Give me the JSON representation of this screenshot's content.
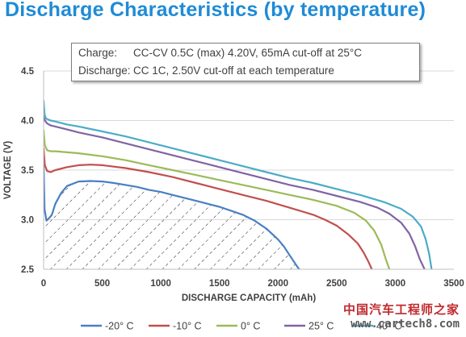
{
  "chart_data": {
    "type": "line",
    "title": "Discharge Characteristics (by temperature)",
    "xlabel": "DISCHARGE CAPACITY (mAh)",
    "ylabel": "VOLTAGE (V)",
    "xlim": [
      0,
      3500
    ],
    "ylim": [
      2.5,
      4.5
    ],
    "x_ticks": [
      0,
      500,
      1000,
      1500,
      2000,
      2500,
      3000,
      3500
    ],
    "y_ticks": [
      2.5,
      3.0,
      3.5,
      4.0,
      4.5
    ],
    "x_tick_labels": [
      "0",
      "500",
      "1000",
      "1500",
      "2000",
      "2500",
      "3000",
      "3500"
    ],
    "y_tick_labels": [
      "2.5",
      "3.0",
      "3.5",
      "4.0",
      "4.5"
    ],
    "grid": "horizontal",
    "legend_position": "bottom",
    "notes": [
      {
        "label": "Charge:",
        "text": "CC-CV 0.5C (max) 4.20V, 65mA cut-off at 25°C"
      },
      {
        "label": "Discharge:",
        "text": "CC 1C, 2.50V cut-off at each temperature"
      }
    ],
    "hatched_region_series": 0,
    "series": [
      {
        "name": "-20° C",
        "color": "#4a7fc1",
        "x": [
          0,
          8,
          25,
          50,
          70,
          100,
          150,
          200,
          300,
          400,
          500,
          600,
          700,
          800,
          900,
          1000,
          1100,
          1200,
          1300,
          1400,
          1500,
          1600,
          1700,
          1800,
          1900,
          2000,
          2050,
          2100,
          2150,
          2180
        ],
        "y": [
          3.55,
          3.1,
          2.99,
          3.02,
          3.05,
          3.16,
          3.27,
          3.34,
          3.385,
          3.39,
          3.385,
          3.37,
          3.35,
          3.33,
          3.3,
          3.28,
          3.25,
          3.22,
          3.19,
          3.16,
          3.13,
          3.09,
          3.05,
          2.99,
          2.91,
          2.8,
          2.73,
          2.64,
          2.55,
          2.5
        ]
      },
      {
        "name": "-10° C",
        "color": "#c0504d",
        "x": [
          0,
          10,
          30,
          60,
          100,
          200,
          300,
          400,
          500,
          700,
          900,
          1100,
          1300,
          1500,
          1700,
          1900,
          2100,
          2300,
          2400,
          2500,
          2600,
          2680,
          2730,
          2770,
          2800
        ],
        "y": [
          3.72,
          3.55,
          3.49,
          3.48,
          3.5,
          3.53,
          3.55,
          3.555,
          3.55,
          3.52,
          3.48,
          3.43,
          3.37,
          3.31,
          3.25,
          3.19,
          3.12,
          3.05,
          3.0,
          2.94,
          2.85,
          2.76,
          2.67,
          2.58,
          2.5
        ]
      },
      {
        "name": "0° C",
        "color": "#9bbb59",
        "x": [
          0,
          10,
          30,
          60,
          100,
          200,
          300,
          500,
          700,
          900,
          1100,
          1300,
          1500,
          1700,
          1900,
          2100,
          2300,
          2500,
          2650,
          2750,
          2820,
          2880,
          2920,
          2950
        ],
        "y": [
          3.9,
          3.75,
          3.7,
          3.69,
          3.69,
          3.68,
          3.67,
          3.64,
          3.6,
          3.55,
          3.5,
          3.45,
          3.4,
          3.35,
          3.3,
          3.25,
          3.2,
          3.14,
          3.07,
          2.99,
          2.89,
          2.75,
          2.6,
          2.5
        ]
      },
      {
        "name": "25° C",
        "color": "#8064a2",
        "x": [
          0,
          10,
          30,
          60,
          100,
          200,
          300,
          500,
          700,
          900,
          1100,
          1300,
          1500,
          1700,
          1900,
          2100,
          2300,
          2500,
          2700,
          2850,
          2950,
          3050,
          3120,
          3170,
          3210,
          3250
        ],
        "y": [
          4.05,
          4.0,
          3.97,
          3.95,
          3.94,
          3.91,
          3.88,
          3.83,
          3.77,
          3.71,
          3.65,
          3.59,
          3.53,
          3.47,
          3.41,
          3.35,
          3.3,
          3.24,
          3.18,
          3.12,
          3.06,
          2.97,
          2.86,
          2.73,
          2.6,
          2.5
        ]
      },
      {
        "name": "40° C",
        "color": "#4bacc6",
        "x": [
          0,
          8,
          20,
          40,
          60,
          100,
          200,
          300,
          500,
          700,
          900,
          1100,
          1300,
          1500,
          1700,
          1900,
          2100,
          2300,
          2500,
          2700,
          2900,
          3050,
          3150,
          3220,
          3260,
          3290,
          3310
        ],
        "y": [
          4.2,
          4.06,
          4.02,
          4.01,
          4.0,
          3.99,
          3.96,
          3.94,
          3.89,
          3.84,
          3.78,
          3.72,
          3.66,
          3.6,
          3.54,
          3.48,
          3.42,
          3.37,
          3.31,
          3.25,
          3.18,
          3.11,
          3.03,
          2.93,
          2.8,
          2.65,
          2.5
        ]
      }
    ]
  },
  "watermark": {
    "text_cn": "中国汽车工程师之家",
    "url": "www.cartech8.com"
  }
}
